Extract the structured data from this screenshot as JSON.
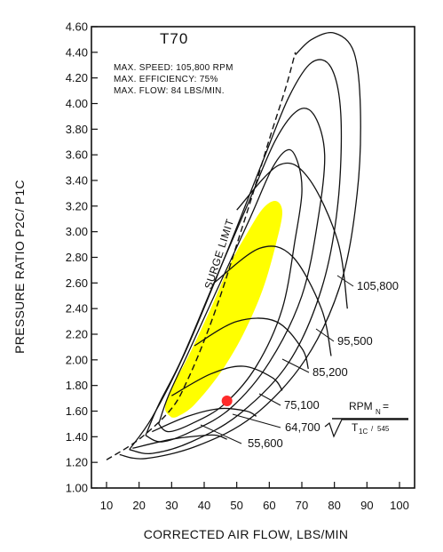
{
  "chart_data": {
    "type": "compressor-map",
    "title": "T70",
    "specs": [
      "MAX. SPEED: 105,800 RPM",
      "MAX. EFFICIENCY: 75%",
      "MAX. FLOW: 84 LBS/MIN."
    ],
    "xlabel": "CORRECTED AIR FLOW, LBS/MIN",
    "ylabel": "PRESSURE RATIO P2C/ P1C",
    "xlim": [
      10,
      100
    ],
    "ylim": [
      1.0,
      4.6
    ],
    "x_ticks": [
      "10",
      "20",
      "30",
      "40",
      "50",
      "60",
      "70",
      "80",
      "90",
      "100"
    ],
    "y_ticks": [
      "1.00",
      "1.20",
      "1.40",
      "1.60",
      "1.80",
      "2.00",
      "2.20",
      "2.40",
      "2.60",
      "2.80",
      "3.00",
      "3.20",
      "3.40",
      "3.60",
      "3.80",
      "4.00",
      "4.20",
      "4.40",
      "4.60"
    ],
    "surge_line": {
      "label": "SURGE LIMIT",
      "points": [
        [
          10,
          1.22
        ],
        [
          20,
          1.38
        ],
        [
          30,
          1.62
        ],
        [
          35,
          1.85
        ],
        [
          40,
          2.15
        ],
        [
          45,
          2.5
        ],
        [
          50,
          2.9
        ],
        [
          55,
          3.3
        ],
        [
          60,
          3.72
        ],
        [
          65,
          4.12
        ],
        [
          68,
          4.4
        ]
      ]
    },
    "speed_lines": [
      {
        "label": "55,600",
        "points": [
          [
            18,
            1.31
          ],
          [
            30,
            1.38
          ],
          [
            40,
            1.41
          ],
          [
            44,
            1.41
          ],
          [
            47,
            1.38
          ]
        ]
      },
      {
        "label": "64,700",
        "points": [
          [
            24,
            1.44
          ],
          [
            35,
            1.56
          ],
          [
            45,
            1.62
          ],
          [
            53,
            1.6
          ],
          [
            56,
            1.56
          ]
        ]
      },
      {
        "label": "75,100",
        "points": [
          [
            30,
            1.72
          ],
          [
            42,
            1.89
          ],
          [
            52,
            1.95
          ],
          [
            61,
            1.86
          ],
          [
            64,
            1.76
          ]
        ]
      },
      {
        "label": "85,200",
        "points": [
          [
            37,
            2.11
          ],
          [
            50,
            2.3
          ],
          [
            62,
            2.3
          ],
          [
            70,
            2.09
          ],
          [
            72,
            1.93
          ]
        ]
      },
      {
        "label": "95,500",
        "points": [
          [
            43,
            2.6
          ],
          [
            57,
            2.87
          ],
          [
            67,
            2.81
          ],
          [
            76,
            2.4
          ],
          [
            79,
            2.03
          ]
        ]
      },
      {
        "label": "105,800",
        "points": [
          [
            50,
            3.17
          ],
          [
            63,
            3.52
          ],
          [
            72,
            3.42
          ],
          [
            81,
            2.93
          ],
          [
            84,
            2.4
          ]
        ]
      }
    ],
    "efficiency_islands": [
      {
        "points": [
          [
            26,
            1.5
          ],
          [
            29,
            1.44
          ],
          [
            36,
            1.5
          ],
          [
            46,
            1.65
          ],
          [
            56,
            1.95
          ],
          [
            64,
            2.4
          ],
          [
            68,
            2.95
          ],
          [
            70,
            3.3
          ],
          [
            69,
            3.52
          ],
          [
            66,
            3.64
          ],
          [
            61,
            3.5
          ],
          [
            54,
            3.1
          ],
          [
            44,
            2.55
          ],
          [
            35,
            2.05
          ],
          [
            29,
            1.72
          ],
          [
            26,
            1.5
          ]
        ]
      },
      {
        "points": [
          [
            22,
            1.41
          ],
          [
            27,
            1.36
          ],
          [
            36,
            1.44
          ],
          [
            48,
            1.62
          ],
          [
            60,
            1.98
          ],
          [
            70,
            2.5
          ],
          [
            75,
            3.1
          ],
          [
            77,
            3.6
          ],
          [
            74,
            3.9
          ],
          [
            69,
            3.95
          ],
          [
            62,
            3.72
          ],
          [
            54,
            3.25
          ],
          [
            43,
            2.6
          ],
          [
            33,
            2.0
          ],
          [
            26,
            1.65
          ],
          [
            22,
            1.41
          ]
        ]
      },
      {
        "points": [
          [
            17,
            1.3
          ],
          [
            24,
            1.27
          ],
          [
            36,
            1.36
          ],
          [
            51,
            1.58
          ],
          [
            66,
            1.98
          ],
          [
            76,
            2.55
          ],
          [
            81,
            3.2
          ],
          [
            82,
            3.9
          ],
          [
            79,
            4.28
          ],
          [
            73,
            4.32
          ],
          [
            66,
            4.05
          ],
          [
            58,
            3.55
          ],
          [
            46,
            2.78
          ],
          [
            34,
            2.05
          ],
          [
            24,
            1.55
          ],
          [
            17,
            1.3
          ]
        ]
      },
      {
        "points": [
          [
            14,
            1.26
          ],
          [
            22,
            1.23
          ],
          [
            38,
            1.33
          ],
          [
            55,
            1.56
          ],
          [
            71,
            2.0
          ],
          [
            82,
            2.6
          ],
          [
            87,
            3.3
          ],
          [
            88,
            3.95
          ],
          [
            86,
            4.4
          ],
          [
            80,
            4.55
          ],
          [
            73,
            4.5
          ],
          [
            68,
            4.38
          ]
        ]
      }
    ],
    "peak_efficiency_zone": {
      "color": "#ffff00",
      "points": [
        [
          30,
          1.55
        ],
        [
          28,
          1.62
        ],
        [
          30,
          1.78
        ],
        [
          35,
          2.02
        ],
        [
          42,
          2.4
        ],
        [
          48,
          2.75
        ],
        [
          53,
          2.98
        ],
        [
          58,
          3.18
        ],
        [
          62,
          3.24
        ],
        [
          64,
          3.15
        ],
        [
          62,
          2.9
        ],
        [
          58,
          2.55
        ],
        [
          52,
          2.2
        ],
        [
          45,
          1.9
        ],
        [
          37,
          1.65
        ],
        [
          32,
          1.56
        ],
        [
          30,
          1.55
        ]
      ]
    },
    "operating_point": {
      "x": 47,
      "y": 1.68,
      "color": "#ff2b2b"
    },
    "rpm_formula": {
      "lhs": "RPM",
      "subscript": "N",
      "denominator": "T",
      "denominator_sub": "1C",
      "constant": "545"
    },
    "grid": false,
    "legend": "none"
  }
}
